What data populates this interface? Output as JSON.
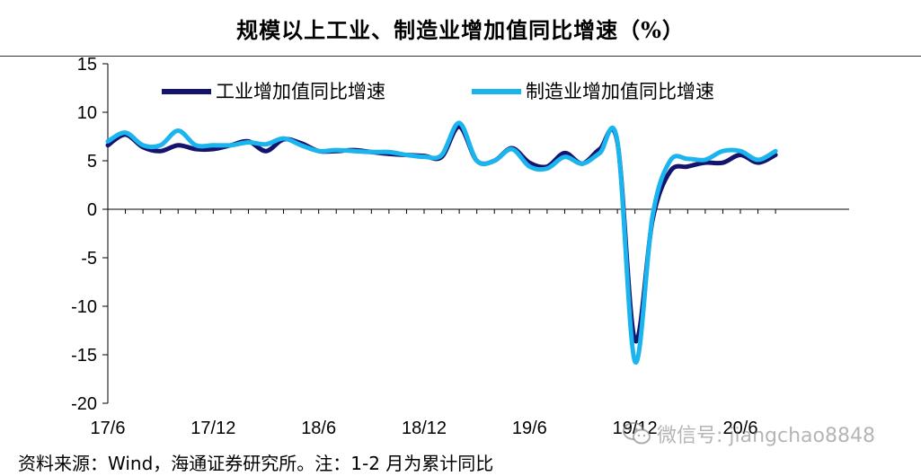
{
  "title": "规模以上工业、制造业增加值同比增速（%）",
  "source_note": "资料来源：Wind，海通证券研究所。注：1-2 月为累计同比",
  "watermark": {
    "text": "微信号: jiangchao8848",
    "icon": "wechat-icon"
  },
  "colors": {
    "industrial": "#14146e",
    "manufacturing": "#1ab4ee",
    "axis": "#000000"
  },
  "chart_data": {
    "type": "line",
    "ylim": [
      -20,
      15
    ],
    "yticks": [
      15,
      10,
      5,
      0,
      -5,
      -10,
      -15,
      -20
    ],
    "xlim": [
      0,
      45
    ],
    "xticks": [
      {
        "x": 0,
        "label": "17/6"
      },
      {
        "x": 6,
        "label": "17/12"
      },
      {
        "x": 12,
        "label": "18/6"
      },
      {
        "x": 18,
        "label": "18/12"
      },
      {
        "x": 24,
        "label": "19/6"
      },
      {
        "x": 30,
        "label": "19/12"
      },
      {
        "x": 36,
        "label": "20/6"
      }
    ],
    "legend_position": "top",
    "series": [
      {
        "name": "工业增加值同比增速",
        "color": "#14146e",
        "x": [
          0,
          1,
          2,
          3,
          4,
          5,
          6,
          7,
          8,
          9,
          10,
          11,
          12,
          13,
          14,
          15,
          16,
          17,
          18,
          19,
          20,
          21,
          22,
          23,
          24,
          25,
          26,
          27,
          28,
          29,
          30,
          31,
          32,
          33,
          34,
          35,
          36,
          37,
          38
        ],
        "values": [
          6.6,
          7.7,
          6.4,
          6.0,
          6.6,
          6.2,
          6.2,
          6.6,
          7.0,
          6.0,
          7.2,
          6.8,
          6.0,
          6.0,
          6.1,
          5.9,
          5.7,
          5.6,
          5.5,
          5.4,
          8.5,
          5.0,
          5.0,
          6.3,
          4.8,
          4.4,
          5.8,
          4.7,
          6.2,
          6.9,
          -13.5,
          -1.1,
          3.9,
          4.4,
          4.8,
          4.8,
          5.6,
          4.8,
          5.6
        ]
      },
      {
        "name": "制造业增加值同比增速",
        "color": "#1ab4ee",
        "x": [
          0,
          1,
          2,
          3,
          4,
          5,
          6,
          7,
          8,
          9,
          10,
          11,
          12,
          13,
          14,
          15,
          16,
          17,
          18,
          19,
          20,
          21,
          22,
          23,
          24,
          25,
          26,
          27,
          28,
          29,
          30,
          31,
          32,
          33,
          34,
          35,
          36,
          37,
          38
        ],
        "values": [
          7.0,
          7.9,
          6.6,
          6.6,
          8.1,
          6.6,
          6.6,
          6.6,
          6.9,
          6.7,
          7.3,
          6.6,
          6.0,
          6.1,
          6.0,
          5.9,
          5.9,
          5.6,
          5.4,
          5.6,
          8.9,
          5.0,
          5.0,
          6.2,
          4.4,
          4.2,
          5.4,
          4.7,
          5.8,
          7.0,
          -15.7,
          -0.7,
          5.0,
          5.2,
          5.1,
          6.0,
          6.0,
          5.1,
          6.0
        ]
      }
    ]
  }
}
